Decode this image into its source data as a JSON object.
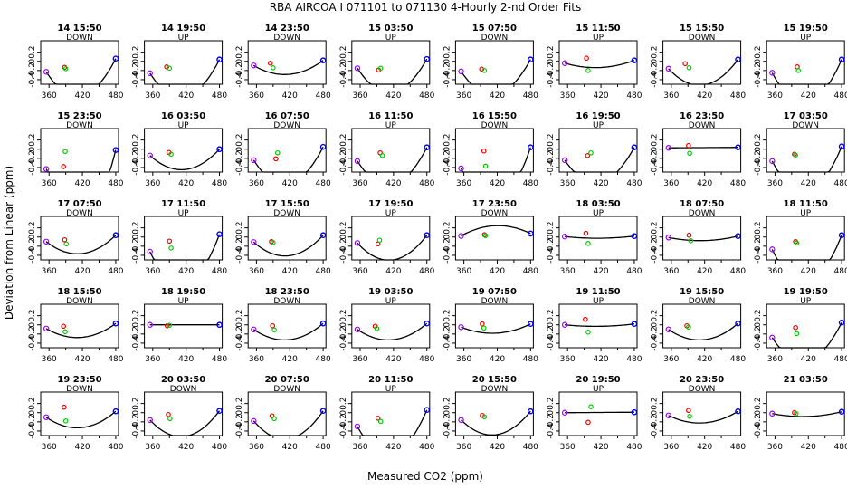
{
  "chart_data": {
    "type": "scatter",
    "title": "RBA   AIRCOA I   071101 to 071130   4-Hourly 2-nd Order Fits",
    "xlabel": "Measured CO2 (ppm)",
    "ylabel": "Deviation from Linear (ppm)",
    "xlim": [
      345,
      485
    ],
    "ylim": [
      -0.5,
      0.45
    ],
    "xticks": [
      360,
      420,
      480
    ],
    "xtick_labels": [
      "360",
      "420",
      "480"
    ],
    "xminor": [
      390,
      450
    ],
    "yticks": [
      0.2,
      0,
      -0.2,
      -0.4
    ],
    "ytick_labels": [
      "0.2",
      "0",
      "-0.2",
      "-0.4"
    ],
    "cal_x": [
      355,
      480
    ],
    "panels": [
      {
        "label": "14 15:50",
        "mode": "DOWN",
        "a": -0.16,
        "v": 410,
        "y1": 0.09,
        "y2": 0.06,
        "red": [
          388,
          -0.13
        ],
        "green": [
          390,
          -0.16
        ]
      },
      {
        "label": "14 19:50",
        "mode": "UP",
        "a": -0.16,
        "v": 410,
        "y1": 0.06,
        "y2": 0.04,
        "red": [
          385,
          -0.12
        ],
        "green": [
          390,
          -0.15
        ]
      },
      {
        "label": "14 23:50",
        "mode": "DOWN",
        "a": -0.06,
        "v": 410,
        "y1": 0.03,
        "y2": 0.02,
        "red": [
          385,
          -0.04
        ],
        "green": [
          390,
          -0.14
        ]
      },
      {
        "label": "15 03:50",
        "mode": "UP",
        "a": -0.15,
        "v": 410,
        "y1": 0.15,
        "y2": 0.05,
        "red": [
          393,
          -0.19
        ],
        "green": [
          397,
          -0.15
        ]
      },
      {
        "label": "15 07:50",
        "mode": "DOWN",
        "a": -0.15,
        "v": 410,
        "y1": 0.08,
        "y2": 0.04,
        "red": [
          392,
          -0.17
        ],
        "green": [
          397,
          -0.2
        ]
      },
      {
        "label": "15 11:50",
        "mode": "UP",
        "a": -0.03,
        "v": 410,
        "y1": 0.02,
        "y2": 0.02,
        "red": [
          394,
          0.07
        ],
        "green": [
          397,
          -0.2
        ]
      },
      {
        "label": "15 15:50",
        "mode": "DOWN",
        "a": -0.11,
        "v": 410,
        "y1": 0.06,
        "y2": 0.04,
        "red": [
          385,
          -0.05
        ],
        "green": [
          392,
          -0.14
        ]
      },
      {
        "label": "15 19:50",
        "mode": "UP",
        "a": -0.19,
        "v": 410,
        "y1": 0.13,
        "y2": 0.04,
        "red": [
          400,
          -0.12
        ],
        "green": [
          402,
          -0.2
        ]
      },
      {
        "label": "15 23:50",
        "mode": "DOWN",
        "a": -0.34,
        "v": 412,
        "y1": 0.15,
        "y2": 0.08,
        "red": [
          386,
          -0.38
        ],
        "green": [
          389,
          -0.05
        ]
      },
      {
        "label": "16 03:50",
        "mode": "UP",
        "a": -0.09,
        "v": 410,
        "y1": 0.04,
        "y2": 0.0,
        "red": [
          389,
          -0.07
        ],
        "green": [
          393,
          -0.11
        ]
      },
      {
        "label": "16 07:50",
        "mode": "DOWN",
        "a": -0.16,
        "v": 410,
        "y1": 0.08,
        "y2": 0.05,
        "red": [
          395,
          -0.21
        ],
        "green": [
          398,
          -0.08
        ]
      },
      {
        "label": "16 11:50",
        "mode": "UP",
        "a": -0.16,
        "v": 410,
        "y1": 0.06,
        "y2": 0.04,
        "red": [
          396,
          -0.08
        ],
        "green": [
          400,
          -0.14
        ]
      },
      {
        "label": "16 15:50",
        "mode": "DOWN",
        "a": -0.24,
        "v": 410,
        "y1": 0.06,
        "y2": 0.04,
        "red": [
          396,
          -0.04
        ],
        "green": [
          399,
          -0.37
        ]
      },
      {
        "label": "16 19:50",
        "mode": "UP",
        "a": -0.15,
        "v": 410,
        "y1": 0.06,
        "y2": 0.04,
        "red": [
          396,
          -0.14
        ],
        "green": [
          402,
          -0.08
        ]
      },
      {
        "label": "16 23:50",
        "mode": "DOWN",
        "a": 0.0,
        "v": 410,
        "y1": 0.03,
        "y2": 0.04,
        "red": [
          391,
          0.08
        ],
        "green": [
          393,
          -0.09
        ]
      },
      {
        "label": "17 03:50",
        "mode": "DOWN",
        "a": -0.2,
        "v": 410,
        "y1": 0.14,
        "y2": 0.06,
        "red": [
          395,
          -0.11
        ],
        "green": [
          397,
          -0.13
        ]
      },
      {
        "label": "17 07:50",
        "mode": "DOWN",
        "a": -0.08,
        "v": 410,
        "y1": 0.06,
        "y2": 0.04,
        "red": [
          388,
          -0.06
        ],
        "green": [
          391,
          -0.15
        ]
      },
      {
        "label": "17 11:50",
        "mode": "UP",
        "a": -0.22,
        "v": 410,
        "y1": 0.12,
        "y2": 0.06,
        "red": [
          390,
          -0.09
        ],
        "green": [
          393,
          -0.24
        ]
      },
      {
        "label": "17 15:50",
        "mode": "DOWN",
        "a": -0.09,
        "v": 410,
        "y1": 0.07,
        "y2": 0.04,
        "red": [
          387,
          -0.1
        ],
        "green": [
          390,
          -0.12
        ]
      },
      {
        "label": "17 19:50",
        "mode": "UP",
        "a": -0.11,
        "v": 410,
        "y1": 0.09,
        "y2": 0.04,
        "red": [
          392,
          -0.15
        ],
        "green": [
          395,
          -0.07
        ]
      },
      {
        "label": "17 23:50",
        "mode": "DOWN",
        "a": 0.05,
        "v": 420,
        "y1": -0.01,
        "y2": 0.01,
        "red": [
          397,
          0.05
        ],
        "green": [
          399,
          0.03
        ]
      },
      {
        "label": "18 03:50",
        "mode": "UP",
        "a": -0.01,
        "v": 410,
        "y1": 0.03,
        "y2": 0.02,
        "red": [
          393,
          0.08
        ],
        "green": [
          397,
          -0.14
        ]
      },
      {
        "label": "18 07:50",
        "mode": "DOWN",
        "a": -0.02,
        "v": 410,
        "y1": 0.03,
        "y2": 0.02,
        "red": [
          392,
          0.04
        ],
        "green": [
          395,
          -0.08
        ]
      },
      {
        "label": "18 11:50",
        "mode": "UP",
        "a": -0.21,
        "v": 410,
        "y1": 0.15,
        "y2": 0.04,
        "red": [
          397,
          -0.1
        ],
        "green": [
          399,
          -0.13
        ]
      },
      {
        "label": "18 15:50",
        "mode": "DOWN",
        "a": -0.06,
        "v": 410,
        "y1": 0.04,
        "y2": 0.03,
        "red": [
          386,
          -0.03
        ],
        "green": [
          389,
          -0.15
        ]
      },
      {
        "label": "18 19:50",
        "mode": "UP",
        "a": 0.0,
        "v": 410,
        "y1": 0.0,
        "y2": 0.0,
        "red": [
          386,
          -0.02
        ],
        "green": [
          390,
          -0.01
        ]
      },
      {
        "label": "18 23:50",
        "mode": "DOWN",
        "a": -0.07,
        "v": 410,
        "y1": 0.04,
        "y2": 0.03,
        "red": [
          389,
          -0.02
        ],
        "green": [
          392,
          -0.11
        ]
      },
      {
        "label": "19 03:50",
        "mode": "UP",
        "a": -0.07,
        "v": 410,
        "y1": 0.04,
        "y2": 0.03,
        "red": [
          387,
          -0.03
        ],
        "green": [
          390,
          -0.08
        ]
      },
      {
        "label": "19 07:50",
        "mode": "DOWN",
        "a": -0.04,
        "v": 410,
        "y1": 0.03,
        "y2": 0.02,
        "red": [
          393,
          0.02
        ],
        "green": [
          396,
          -0.07
        ]
      },
      {
        "label": "19 11:50",
        "mode": "UP",
        "a": -0.01,
        "v": 410,
        "y1": 0.02,
        "y2": 0.02,
        "red": [
          392,
          0.12
        ],
        "green": [
          397,
          -0.16
        ]
      },
      {
        "label": "19 15:50",
        "mode": "DOWN",
        "a": -0.07,
        "v": 410,
        "y1": 0.04,
        "y2": 0.03,
        "red": [
          388,
          -0.02
        ],
        "green": [
          391,
          -0.05
        ]
      },
      {
        "label": "19 19:50",
        "mode": "UP",
        "a": -0.16,
        "v": 410,
        "y1": 0.04,
        "y2": 0.05,
        "red": [
          397,
          -0.06
        ],
        "green": [
          399,
          -0.19
        ]
      },
      {
        "label": "19 23:50",
        "mode": "DOWN",
        "a": -0.07,
        "v": 410,
        "y1": 0.04,
        "y2": 0.03,
        "red": [
          387,
          0.12
        ],
        "green": [
          390,
          -0.18
        ]
      },
      {
        "label": "20 03:50",
        "mode": "DOWN",
        "a": -0.11,
        "v": 410,
        "y1": 0.06,
        "y2": 0.04,
        "red": [
          388,
          -0.04
        ],
        "green": [
          391,
          -0.13
        ]
      },
      {
        "label": "20 07:50",
        "mode": "DOWN",
        "a": -0.12,
        "v": 410,
        "y1": 0.06,
        "y2": 0.04,
        "red": [
          388,
          -0.07
        ],
        "green": [
          392,
          -0.13
        ]
      },
      {
        "label": "20 11:50",
        "mode": "UP",
        "a": -0.19,
        "v": 410,
        "y1": 0.08,
        "y2": 0.06,
        "red": [
          392,
          -0.12
        ],
        "green": [
          397,
          -0.19
        ]
      },
      {
        "label": "20 15:50",
        "mode": "DOWN",
        "a": -0.1,
        "v": 410,
        "y1": 0.04,
        "y2": 0.03,
        "red": [
          393,
          -0.06
        ],
        "green": [
          397,
          -0.09
        ]
      },
      {
        "label": "20 19:50",
        "mode": "UP",
        "a": 0.0,
        "v": 410,
        "y1": 0.0,
        "y2": 0.01,
        "red": [
          397,
          -0.21
        ],
        "green": [
          402,
          0.13
        ]
      },
      {
        "label": "20 23:50",
        "mode": "DOWN",
        "a": -0.05,
        "v": 410,
        "y1": 0.04,
        "y2": 0.03,
        "red": [
          391,
          0.05
        ],
        "green": [
          393,
          -0.08
        ]
      },
      {
        "label": "21 03:50",
        "mode": "",
        "a": -0.02,
        "v": 410,
        "y1": 0.02,
        "y2": 0.02,
        "red": [
          395,
          0.0
        ],
        "green": [
          398,
          -0.02
        ]
      }
    ]
  },
  "colors": {
    "curve": "#000000",
    "red_marker": "#ee0000",
    "green_marker": "#00cc00",
    "cal_low": "#9900ff",
    "cal_high": "#0000ee"
  }
}
